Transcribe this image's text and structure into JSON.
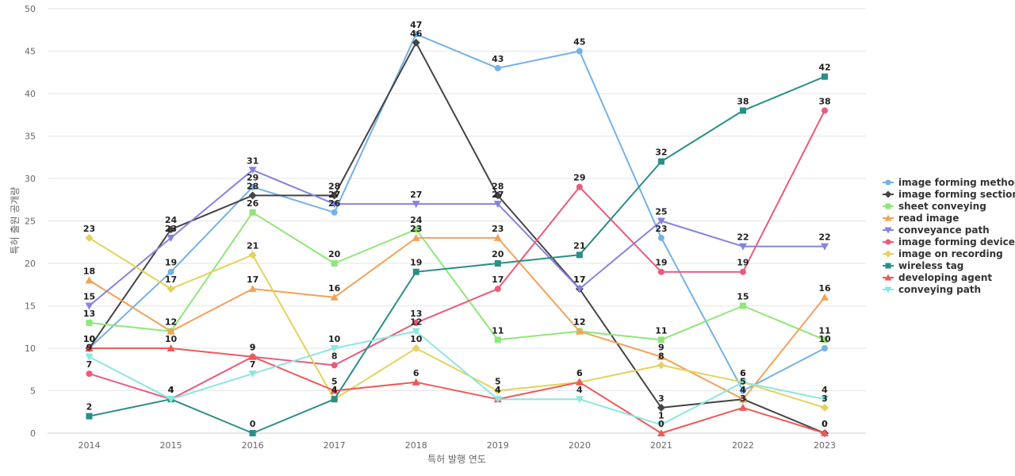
{
  "chart_data": {
    "type": "line",
    "title": "",
    "xlabel": "특허 발행 연도",
    "ylabel": "특허 출원 공개량",
    "ylim": [
      0,
      50
    ],
    "y_ticks": [
      0,
      5,
      10,
      15,
      20,
      25,
      30,
      35,
      40,
      45,
      50
    ],
    "categories": [
      "2014",
      "2015",
      "2016",
      "2017",
      "2018",
      "2019",
      "2020",
      "2021",
      "2022",
      "2023"
    ],
    "grid": true,
    "legend_position": "right",
    "data_labels": true,
    "series": [
      {
        "name": "image forming method",
        "color": "#74b1e6",
        "marker": "circle",
        "values": [
          10,
          19,
          29,
          26,
          47,
          43,
          45,
          23,
          5,
          10
        ]
      },
      {
        "name": "image forming section",
        "color": "#444444",
        "marker": "diamond",
        "values": [
          10,
          24,
          28,
          28,
          46,
          28,
          17,
          3,
          4,
          0
        ]
      },
      {
        "name": "sheet conveying",
        "color": "#90e67a",
        "marker": "square",
        "values": [
          13,
          12,
          26,
          20,
          24,
          11,
          12,
          11,
          15,
          11
        ]
      },
      {
        "name": "read image",
        "color": "#f2a25a",
        "marker": "triangle",
        "values": [
          18,
          12,
          17,
          16,
          23,
          23,
          12,
          9,
          4,
          16
        ]
      },
      {
        "name": "conveyance path",
        "color": "#8583e0",
        "marker": "triangle-down",
        "values": [
          15,
          23,
          31,
          27,
          27,
          27,
          17,
          25,
          22,
          22
        ]
      },
      {
        "name": "image forming device",
        "color": "#ea5a7c",
        "marker": "circle",
        "values": [
          7,
          4,
          9,
          8,
          13,
          17,
          29,
          19,
          19,
          38
        ]
      },
      {
        "name": "image on recording",
        "color": "#e4d25b",
        "marker": "diamond",
        "values": [
          23,
          17,
          21,
          4,
          10,
          5,
          6,
          8,
          6,
          3
        ]
      },
      {
        "name": "wireless tag",
        "color": "#2a8f87",
        "marker": "square",
        "values": [
          2,
          4,
          0,
          4,
          19,
          20,
          21,
          32,
          38,
          42
        ]
      },
      {
        "name": "developing agent",
        "color": "#ed5a5a",
        "marker": "triangle",
        "values": [
          10,
          10,
          9,
          5,
          6,
          4,
          6,
          0,
          3,
          0
        ]
      },
      {
        "name": "conveying path",
        "color": "#8ee6e0",
        "marker": "triangle-down",
        "values": [
          9,
          4,
          7,
          10,
          12,
          4,
          4,
          1,
          6,
          4
        ]
      }
    ]
  }
}
